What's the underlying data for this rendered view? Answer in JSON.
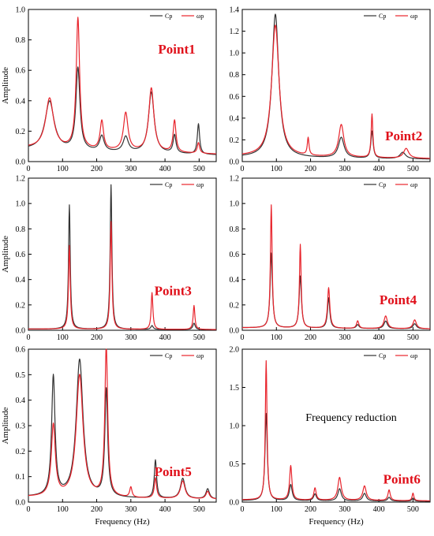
{
  "chart_data": [
    {
      "type": "line",
      "xlim": [
        0,
        550
      ],
      "ylim": [
        0,
        1.0
      ],
      "yticks": [
        "0.0",
        "0.2",
        "0.4",
        "0.6",
        "0.8",
        "1.0"
      ],
      "xticks": [
        "0",
        "100",
        "200",
        "300",
        "400",
        "500"
      ],
      "ylabel": "Amplitude",
      "xlabel": "",
      "label": "Point1",
      "legend": [
        "Cp",
        "ωp"
      ],
      "legend_position": "top-right",
      "series": [
        {
          "name": "Cp",
          "color": "#333333",
          "peaks": [
            [
              62,
              0.32,
              16
            ],
            [
              145,
              0.54,
              7
            ],
            [
              215,
              0.1,
              8
            ],
            [
              285,
              0.1,
              9
            ],
            [
              360,
              0.4,
              10
            ],
            [
              428,
              0.12,
              5
            ],
            [
              498,
              0.2,
              4
            ]
          ],
          "base": 0.08
        },
        {
          "name": "ωp",
          "color": "#e8242c",
          "peaks": [
            [
              62,
              0.33,
              14
            ],
            [
              145,
              0.86,
              6
            ],
            [
              215,
              0.19,
              6
            ],
            [
              285,
              0.25,
              8
            ],
            [
              360,
              0.42,
              9
            ],
            [
              428,
              0.21,
              5
            ],
            [
              498,
              0.07,
              4
            ]
          ],
          "base": 0.09
        }
      ]
    },
    {
      "type": "line",
      "xlim": [
        0,
        550
      ],
      "ylim": [
        0,
        1.4
      ],
      "yticks": [
        "0.0",
        "0.2",
        "0.4",
        "0.6",
        "0.8",
        "1.0",
        "1.2",
        "1.4"
      ],
      "xticks": [
        "0",
        "100",
        "200",
        "300",
        "400",
        "500"
      ],
      "ylabel": "",
      "xlabel": "",
      "label": "Point2",
      "legend": [
        "Cp",
        "ωp"
      ],
      "legend_position": "top-right",
      "series": [
        {
          "name": "Cp",
          "color": "#333333",
          "peaks": [
            [
              97,
              1.32,
              12
            ],
            [
              290,
              0.19,
              10
            ],
            [
              380,
              0.25,
              4
            ],
            [
              470,
              0.06,
              10
            ]
          ],
          "base": 0.04
        },
        {
          "name": "ωp",
          "color": "#e8242c",
          "peaks": [
            [
              97,
              1.21,
              13
            ],
            [
              193,
              0.16,
              3
            ],
            [
              290,
              0.3,
              9
            ],
            [
              380,
              0.4,
              3
            ],
            [
              480,
              0.09,
              9
            ]
          ],
          "base": 0.05
        }
      ]
    },
    {
      "type": "line",
      "xlim": [
        0,
        550
      ],
      "ylim": [
        0,
        1.2
      ],
      "yticks": [
        "0.0",
        "0.2",
        "0.4",
        "0.6",
        "0.8",
        "1.0",
        "1.2"
      ],
      "xticks": [
        "0",
        "100",
        "200",
        "300",
        "400",
        "500"
      ],
      "ylabel": "Amplitude",
      "xlabel": "",
      "label": "Point3",
      "legend": [
        "Cp",
        "ωp"
      ],
      "legend_position": "top-right",
      "series": [
        {
          "name": "Cp",
          "color": "#333333",
          "peaks": [
            [
              120,
              0.98,
              3
            ],
            [
              242,
              1.14,
              3
            ],
            [
              362,
              0.03,
              4
            ],
            [
              485,
              0.05,
              4
            ]
          ],
          "base": 0.01
        },
        {
          "name": "ωp",
          "color": "#e8242c",
          "peaks": [
            [
              120,
              0.66,
              3
            ],
            [
              242,
              0.85,
              3
            ],
            [
              362,
              0.29,
              3
            ],
            [
              485,
              0.19,
              3
            ]
          ],
          "base": 0.01
        }
      ]
    },
    {
      "type": "line",
      "xlim": [
        0,
        550
      ],
      "ylim": [
        0,
        1.2
      ],
      "yticks": [
        "0.0",
        "0.2",
        "0.4",
        "0.6",
        "0.8",
        "1.0",
        "1.2"
      ],
      "xticks": [
        "0",
        "100",
        "200",
        "300",
        "400",
        "500"
      ],
      "ylabel": "",
      "xlabel": "",
      "label": "Point4",
      "legend": [
        "Cp",
        "ωp"
      ],
      "legend_position": "top-right",
      "series": [
        {
          "name": "Cp",
          "color": "#333333",
          "peaks": [
            [
              85,
              0.59,
              4
            ],
            [
              170,
              0.41,
              4
            ],
            [
              253,
              0.24,
              4
            ],
            [
              338,
              0.03,
              5
            ],
            [
              420,
              0.06,
              6
            ],
            [
              505,
              0.04,
              6
            ]
          ],
          "base": 0.02
        },
        {
          "name": "ωp",
          "color": "#e8242c",
          "peaks": [
            [
              85,
              0.97,
              3
            ],
            [
              170,
              0.66,
              3
            ],
            [
              253,
              0.32,
              4
            ],
            [
              338,
              0.06,
              4
            ],
            [
              420,
              0.1,
              6
            ],
            [
              505,
              0.07,
              6
            ]
          ],
          "base": 0.02
        }
      ]
    },
    {
      "type": "line",
      "xlim": [
        0,
        550
      ],
      "ylim": [
        0,
        0.6
      ],
      "yticks": [
        "0.0",
        "0.1",
        "0.2",
        "0.3",
        "0.4",
        "0.5",
        "0.6"
      ],
      "xticks": [
        "0",
        "100",
        "200",
        "300",
        "400",
        "500"
      ],
      "ylabel": "Amplitude",
      "xlabel": "Frequency (Hz)",
      "label": "Point5",
      "legend": [
        "Cp",
        "ωp"
      ],
      "legend_position": "top-right",
      "series": [
        {
          "name": "Cp",
          "color": "#333333",
          "peaks": [
            [
              73,
              0.47,
              6
            ],
            [
              150,
              0.54,
              12
            ],
            [
              228,
              0.42,
              5
            ],
            [
              372,
              0.15,
              4
            ],
            [
              452,
              0.08,
              8
            ],
            [
              525,
              0.04,
              6
            ]
          ],
          "base": 0.02
        },
        {
          "name": "ωp",
          "color": "#e8242c",
          "peaks": [
            [
              73,
              0.28,
              7
            ],
            [
              150,
              0.48,
              12
            ],
            [
              228,
              0.59,
              5
            ],
            [
              300,
              0.04,
              4
            ],
            [
              372,
              0.08,
              4
            ],
            [
              452,
              0.07,
              8
            ],
            [
              525,
              0.03,
              6
            ]
          ],
          "base": 0.02
        }
      ]
    },
    {
      "type": "line",
      "xlim": [
        0,
        550
      ],
      "ylim": [
        0,
        2.0
      ],
      "yticks": [
        "0.0",
        "0.5",
        "1.0",
        "1.5",
        "2.0"
      ],
      "xticks": [
        "0",
        "100",
        "200",
        "300",
        "400",
        "500"
      ],
      "ylabel": "",
      "xlabel": "Frequency (Hz)",
      "label": "Point6",
      "annotation": "Frequency reduction",
      "legend": [
        "Cp",
        "ωp"
      ],
      "legend_position": "top-right",
      "series": [
        {
          "name": "Cp",
          "color": "#333333",
          "peaks": [
            [
              70,
              1.14,
              4
            ],
            [
              142,
              0.21,
              5
            ],
            [
              213,
              0.09,
              5
            ],
            [
              285,
              0.16,
              6
            ],
            [
              358,
              0.1,
              6
            ],
            [
              430,
              0.05,
              5
            ],
            [
              500,
              0.04,
              4
            ]
          ],
          "base": 0.02
        },
        {
          "name": "ωp",
          "color": "#e8242c",
          "peaks": [
            [
              70,
              1.82,
              3
            ],
            [
              142,
              0.45,
              4
            ],
            [
              213,
              0.16,
              4
            ],
            [
              285,
              0.3,
              6
            ],
            [
              358,
              0.19,
              6
            ],
            [
              430,
              0.14,
              4
            ],
            [
              500,
              0.1,
              3
            ]
          ],
          "base": 0.03
        }
      ]
    }
  ]
}
